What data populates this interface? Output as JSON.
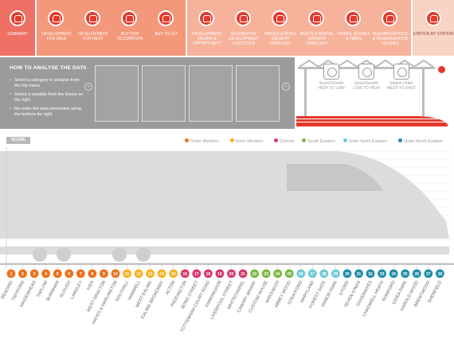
{
  "nav": {
    "summary": "SUMMARY",
    "group1": [
      "DEVELOPMENT FOR SALE",
      "DEVELOPMENT FOR RENT",
      "BUY FOR OCCUPATION",
      "BUY TO LET"
    ],
    "group2": [
      "DEVELOPMENT DESIRE & OPPORTUNITY",
      "RESIDENTIAL DEVELOPMENT STATISTICS",
      "PRICES & PRICE GROWTH FORECAST",
      "RENTS & RENTAL GROWTH FORECAST",
      "TRAVEL SCORES & TIMES",
      "NEIGHBOURHOOD & REGENERATION SCORES"
    ],
    "station": "STATION BY STATION"
  },
  "info": {
    "title": "HOW TO ANALYSE THE DATA",
    "instructions": [
      "Select a category to analyse from the top menu",
      "Select a variable from the boxes on the right",
      "Re-order the data presented using the buttons far right"
    ]
  },
  "order": {
    "buttons": [
      "Score/Growth HIGH TO LOW",
      "Score/Growth LOW TO HIGH",
      "Station Order WEST TO EAST"
    ]
  },
  "chart_data": {
    "type": "bar",
    "ylabel": "SCORE",
    "legend": [
      {
        "name": "Outer Western",
        "color": "#e8731e"
      },
      {
        "name": "Inner Western",
        "color": "#f5b324"
      },
      {
        "name": "Central",
        "color": "#d6386b"
      },
      {
        "name": "South Eastern",
        "color": "#7ab744"
      },
      {
        "name": "Inner North Eastern",
        "color": "#6fc9d8"
      },
      {
        "name": "Outer North Eastern",
        "color": "#1f8ca8"
      }
    ],
    "stations": [
      {
        "n": "1",
        "name": "READING",
        "zone": 0
      },
      {
        "n": "2",
        "name": "TWYFORD",
        "zone": 0
      },
      {
        "n": "3",
        "name": "MAIDENHEAD",
        "zone": 0
      },
      {
        "n": "4",
        "name": "TAPLOW",
        "zone": 0
      },
      {
        "n": "5",
        "name": "BURNHAM",
        "zone": 0
      },
      {
        "n": "6",
        "name": "SLOUGH",
        "zone": 0
      },
      {
        "n": "7",
        "name": "LANGLEY",
        "zone": 0
      },
      {
        "n": "8",
        "name": "IVER",
        "zone": 0
      },
      {
        "n": "9",
        "name": "WEST DRAYTON",
        "zone": 0
      },
      {
        "n": "10",
        "name": "HAYES & HARLINGTON",
        "zone": 0
      },
      {
        "n": "11",
        "name": "SOUTHALL",
        "zone": 1
      },
      {
        "n": "12",
        "name": "HANWELL",
        "zone": 1
      },
      {
        "n": "13",
        "name": "WEST EALING",
        "zone": 1
      },
      {
        "n": "14",
        "name": "EALING BROADWAY",
        "zone": 1
      },
      {
        "n": "15",
        "name": "ACTON",
        "zone": 1
      },
      {
        "n": "16",
        "name": "PADDINGTON",
        "zone": 2
      },
      {
        "n": "17",
        "name": "BOND STREET",
        "zone": 2
      },
      {
        "n": "18",
        "name": "TOTTENHAM COURT ROAD",
        "zone": 2
      },
      {
        "n": "19",
        "name": "FARRINGDON",
        "zone": 2
      },
      {
        "n": "20",
        "name": "LIVERPOOL STREET",
        "zone": 2
      },
      {
        "n": "21",
        "name": "WHITECHAPEL",
        "zone": 2
      },
      {
        "n": "22",
        "name": "CANARY WHARF",
        "zone": 3
      },
      {
        "n": "23",
        "name": "CUSTOM HOUSE",
        "zone": 3
      },
      {
        "n": "24",
        "name": "WOOLWICH",
        "zone": 3
      },
      {
        "n": "25",
        "name": "ABBEY WOOD",
        "zone": 3
      },
      {
        "n": "26",
        "name": "STRATFORD",
        "zone": 4
      },
      {
        "n": "27",
        "name": "MARYLAND",
        "zone": 4
      },
      {
        "n": "28",
        "name": "FOREST GATE",
        "zone": 4
      },
      {
        "n": "29",
        "name": "MANOR PARK",
        "zone": 4
      },
      {
        "n": "30",
        "name": "ILFORD",
        "zone": 5
      },
      {
        "n": "31",
        "name": "SEVEN KINGS",
        "zone": 5
      },
      {
        "n": "32",
        "name": "GOODMAYES",
        "zone": 5
      },
      {
        "n": "33",
        "name": "CHADWELL HEATH",
        "zone": 5
      },
      {
        "n": "34",
        "name": "ROMFORD",
        "zone": 5
      },
      {
        "n": "35",
        "name": "GIDEA PARK",
        "zone": 5
      },
      {
        "n": "36",
        "name": "HAROLD WOOD",
        "zone": 5
      },
      {
        "n": "37",
        "name": "BRENTWOOD",
        "zone": 5
      },
      {
        "n": "38",
        "name": "SHENFIELD",
        "zone": 5
      }
    ]
  }
}
